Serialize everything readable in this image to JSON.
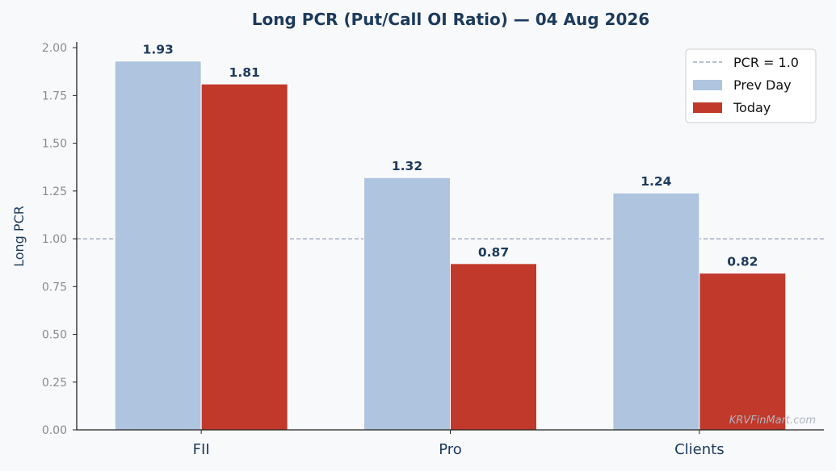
{
  "chart_data": {
    "type": "bar",
    "title": "Long PCR (Put/Call OI Ratio) — 04 Aug 2026",
    "xlabel": "",
    "ylabel": "Long PCR",
    "categories": [
      "FII",
      "Pro",
      "Clients"
    ],
    "series": [
      {
        "name": "Prev Day",
        "values": [
          1.93,
          1.32,
          1.24
        ],
        "color": "#afc4de"
      },
      {
        "name": "Today",
        "values": [
          1.81,
          0.87,
          0.82
        ],
        "color": "#c0392b"
      }
    ],
    "data_labels": {
      "Prev Day": [
        "1.93",
        "1.32",
        "1.24"
      ],
      "Today": [
        "1.81",
        "0.87",
        "0.82"
      ]
    },
    "reference_line": {
      "value": 1.0,
      "label": "PCR = 1.0",
      "style": "dashed",
      "color": "#8a97b4"
    },
    "ylim": [
      0,
      2.03
    ],
    "yticks": [
      0,
      0.25,
      0.5,
      0.75,
      1.0,
      1.25,
      1.5,
      1.75,
      2.0
    ],
    "ytick_labels": [
      "0.00",
      "0.25",
      "0.50",
      "0.75",
      "1.00",
      "1.25",
      "1.50",
      "1.75",
      "2.00"
    ],
    "grid": false,
    "legend_position": "top-right"
  },
  "watermark": "KRVFinMart.com",
  "colors": {
    "background": "#f8f9fb",
    "title": "#1c3a5b",
    "axis": "#222222",
    "tick_label": "#8a8a8a",
    "data_label": "#1c3a5b"
  }
}
